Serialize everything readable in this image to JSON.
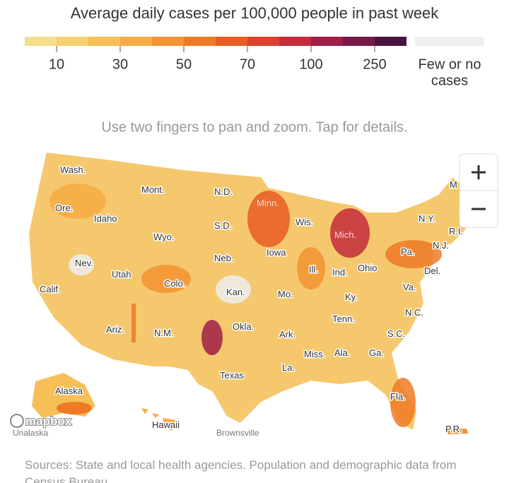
{
  "legend": {
    "title": "Average daily cases per 100,000 people in past week",
    "colors": [
      "#f6dd8d",
      "#f7d073",
      "#f6bf57",
      "#f5ac44",
      "#f39332",
      "#ef7a26",
      "#e95c25",
      "#db412d",
      "#c42c3b",
      "#a01f46",
      "#761948",
      "#4b1440"
    ],
    "none_color": "#efefef",
    "ticks": [
      "10",
      "30",
      "50",
      "70",
      "100",
      "250"
    ],
    "none_label": [
      "Few or no",
      "cases"
    ]
  },
  "hint": "Use two fingers to pan and zoom. Tap for details.",
  "map": {
    "labels": [
      "Wash.",
      "Mont.",
      "N.D.",
      "Minn.",
      "Ore.",
      "Idaho",
      "S.D.",
      "Wis.",
      "Wyo.",
      "Mich.",
      "N.Y.",
      "R.I.",
      "M",
      "Nev.",
      "Neb.",
      "Iowa",
      "Pa.",
      "N.J.",
      "Utah",
      "Colo.",
      "Ill.",
      "Ind.",
      "Ohio",
      "Del.",
      "Calif.",
      "Kan.",
      "Mo.",
      "Va.",
      "Ky.",
      "Tenn.",
      "N.C.",
      "Ariz.",
      "N.M.",
      "Okla.",
      "Ark.",
      "S.C.",
      "Miss.",
      "Ala.",
      "Ga.",
      "Texas",
      "La.",
      "Fla.",
      "Alaska",
      "Hawaii",
      "P.R.",
      "Unalaska",
      "Brownsville"
    ],
    "attribution": "mapbox"
  },
  "sources": "Sources: State and local health agencies. Population and demographic data from Census Bureau."
}
